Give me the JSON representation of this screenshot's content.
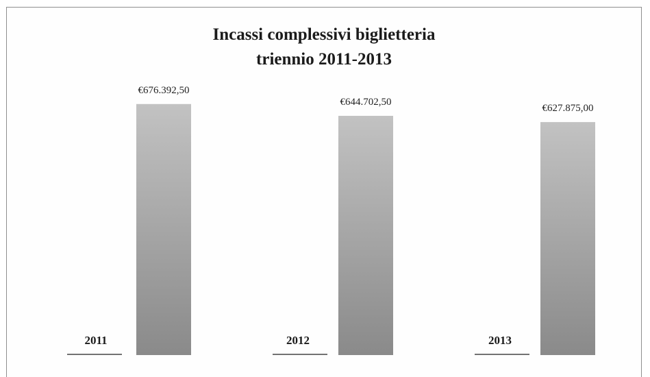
{
  "chart_data": {
    "type": "bar",
    "title": [
      "Incassi complessivi biglietteria",
      "triennio 2011-2013"
    ],
    "categories": [
      "2011",
      "2012",
      "2013"
    ],
    "values": [
      676392.5,
      644702.5,
      627875.0
    ],
    "value_labels": [
      "€676.392,50",
      "€644.702,50",
      "€627.875,00"
    ],
    "xlabel": "",
    "ylabel": "",
    "ylim": [
      0,
      750000
    ],
    "grid": false,
    "legend": "none",
    "colors": {
      "bar_top": "#c2c2c2",
      "bar_bottom": "#8a8a8a",
      "text": "#1a1a1a"
    }
  }
}
